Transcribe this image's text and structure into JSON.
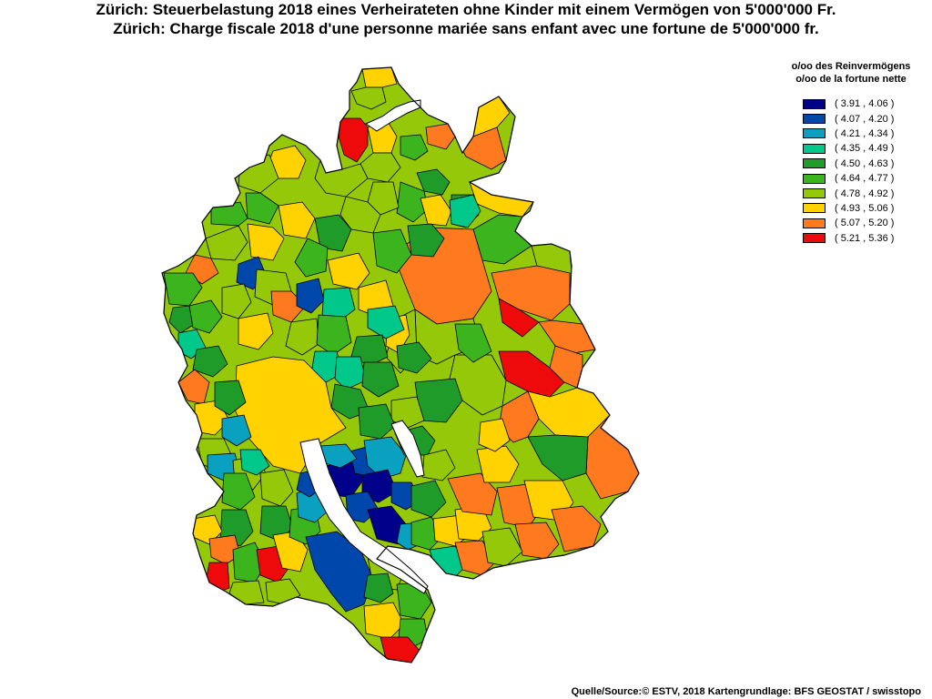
{
  "title": {
    "de": "Zürich: Steuerbelastung 2018 eines Verheirateten ohne Kinder mit einem Vermögen von 5'000'000 Fr.",
    "fr": "Zürich: Charge fiscale 2018 d'une personne mariée sans enfant avec une fortune de 5'000'000 fr."
  },
  "legend": {
    "title_de": "o/oo des Reinvermögens",
    "title_fr": "o/oo de la fortune nette",
    "classes": [
      {
        "label": "( 3.91 , 4.06 )",
        "color": "#00008B"
      },
      {
        "label": "( 4.07 , 4.20 )",
        "color": "#0047AB"
      },
      {
        "label": "( 4.21 , 4.34 )",
        "color": "#0AA0C0"
      },
      {
        "label": "( 4.35 , 4.49 )",
        "color": "#00C88A"
      },
      {
        "label": "( 4.50 , 4.63 )",
        "color": "#1E9B28"
      },
      {
        "label": "( 4.64 , 4.77 )",
        "color": "#3CB41E"
      },
      {
        "label": "( 4.78 , 4.92 )",
        "color": "#96C80A"
      },
      {
        "label": "( 4.93 , 5.06 )",
        "color": "#FFD200"
      },
      {
        "label": "( 5.07 , 5.20 )",
        "color": "#FF7A1E"
      },
      {
        "label": "( 5.21 , 5.36 )",
        "color": "#EE0A0A"
      }
    ]
  },
  "source": "Quelle/Source:© ESTV, 2018 Kartengrundlage: BFS GEOSTAT / swisstopo",
  "colors": {
    "background": "#FFFFFF",
    "border": "#000000",
    "water": "#FFFFFF"
  }
}
